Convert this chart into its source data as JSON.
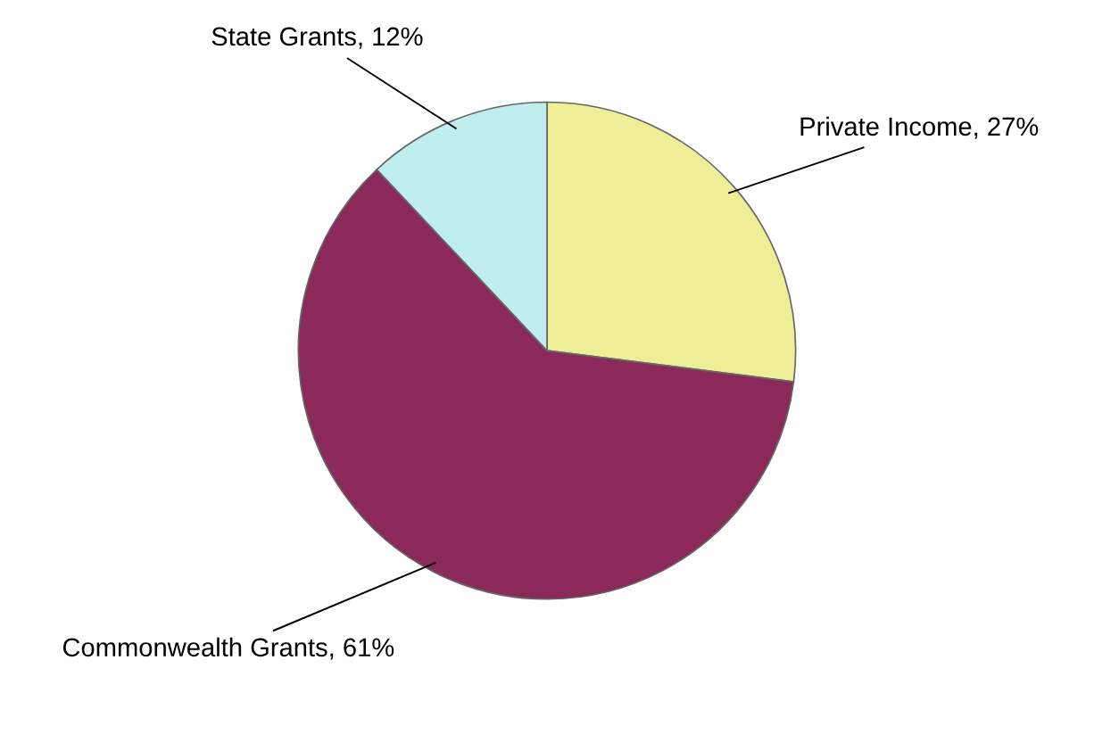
{
  "chart_data": {
    "type": "pie",
    "categories": [
      "Private Income",
      "Commonwealth Grants",
      "State Grants"
    ],
    "values": [
      27,
      61,
      12
    ],
    "colors": [
      "#eeee99",
      "#8b2a5a",
      "#c0eeee"
    ],
    "value_labels": [
      "27%",
      "61%",
      "12%"
    ],
    "legend": false
  }
}
